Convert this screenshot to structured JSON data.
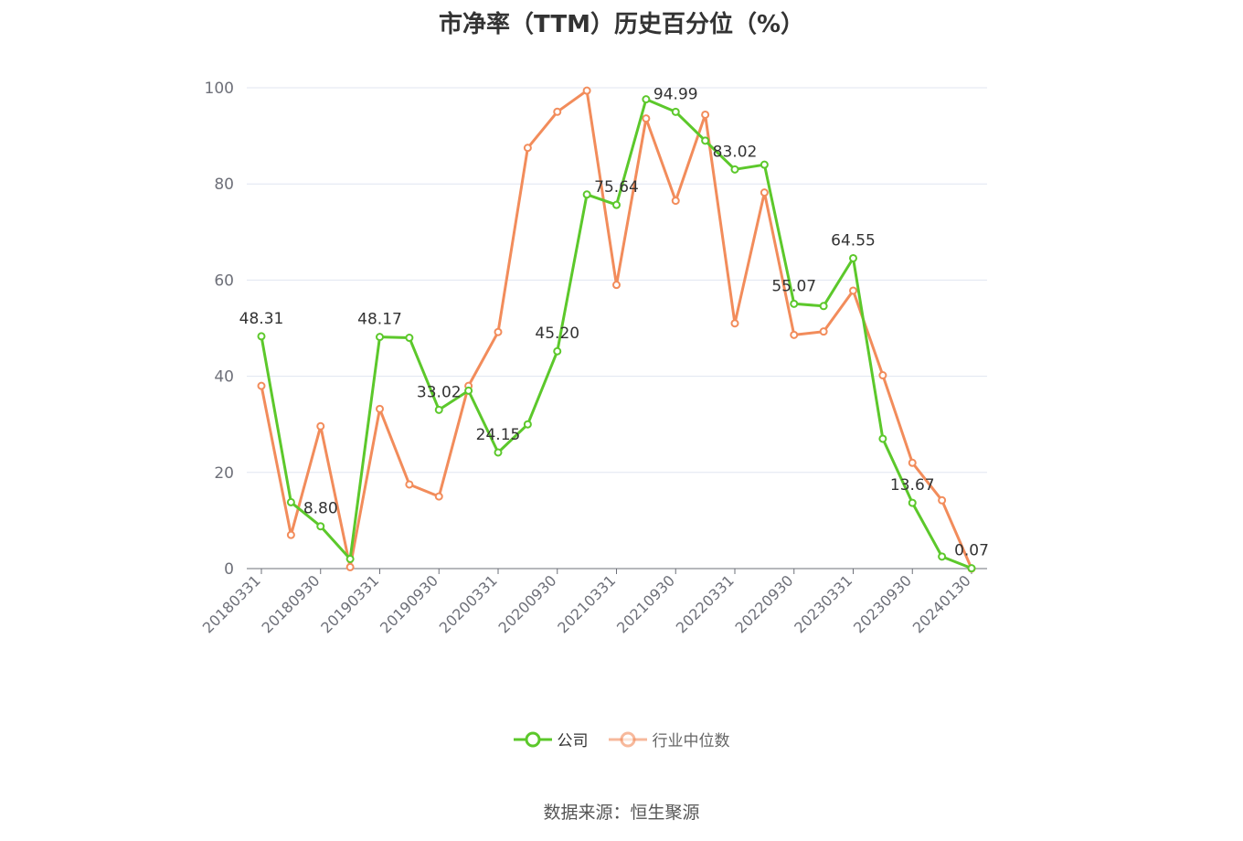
{
  "chart_data": {
    "type": "line",
    "title": "市净率（TTM）历史百分位（%）",
    "ylim": [
      0,
      100
    ],
    "yticks": [
      0,
      20,
      40,
      60,
      80,
      100
    ],
    "grid": true,
    "legend_position": "bottom",
    "x": [
      "20180331",
      "20180630",
      "20180930",
      "20181231",
      "20190331",
      "20190630",
      "20190930",
      "20191231",
      "20200331",
      "20200630",
      "20200930",
      "20201231",
      "20210331",
      "20210630",
      "20210930",
      "20211231",
      "20220331",
      "20220630",
      "20220930",
      "20221231",
      "20230331",
      "20230630",
      "20230930",
      "20231231",
      "20240130"
    ],
    "xtick_labels": [
      "20180331",
      "20180930",
      "20190331",
      "20190930",
      "20200331",
      "20200930",
      "20210331",
      "20210930",
      "20220331",
      "20220930",
      "20230331",
      "20230930",
      "20240130"
    ],
    "series": [
      {
        "name": "公司",
        "color": "#5cc82b",
        "values": [
          48.31,
          13.8,
          8.8,
          2.0,
          48.17,
          48.0,
          33.02,
          37.0,
          24.15,
          30.0,
          45.2,
          77.8,
          75.64,
          97.6,
          94.99,
          89.0,
          83.02,
          84.0,
          55.07,
          54.6,
          64.55,
          27.0,
          13.67,
          2.5,
          0.07
        ],
        "labels": {
          "0": "48.31",
          "2": "8.80",
          "4": "48.17",
          "6": "33.02",
          "8": "24.15",
          "10": "45.20",
          "12": "75.64",
          "14": "94.99",
          "16": "83.02",
          "18": "55.07",
          "20": "64.55",
          "22": "13.67",
          "24": "0.07"
        }
      },
      {
        "name": "行业中位数",
        "color": "#f28c5b",
        "values": [
          38.0,
          7.0,
          29.6,
          0.3,
          33.2,
          17.5,
          15.0,
          38.0,
          49.2,
          87.5,
          95.0,
          99.4,
          59.0,
          93.6,
          76.5,
          94.4,
          51.0,
          78.2,
          48.6,
          49.3,
          57.8,
          40.2,
          22.0,
          14.2,
          0.0
        ]
      }
    ]
  },
  "source": "数据来源：恒生聚源"
}
